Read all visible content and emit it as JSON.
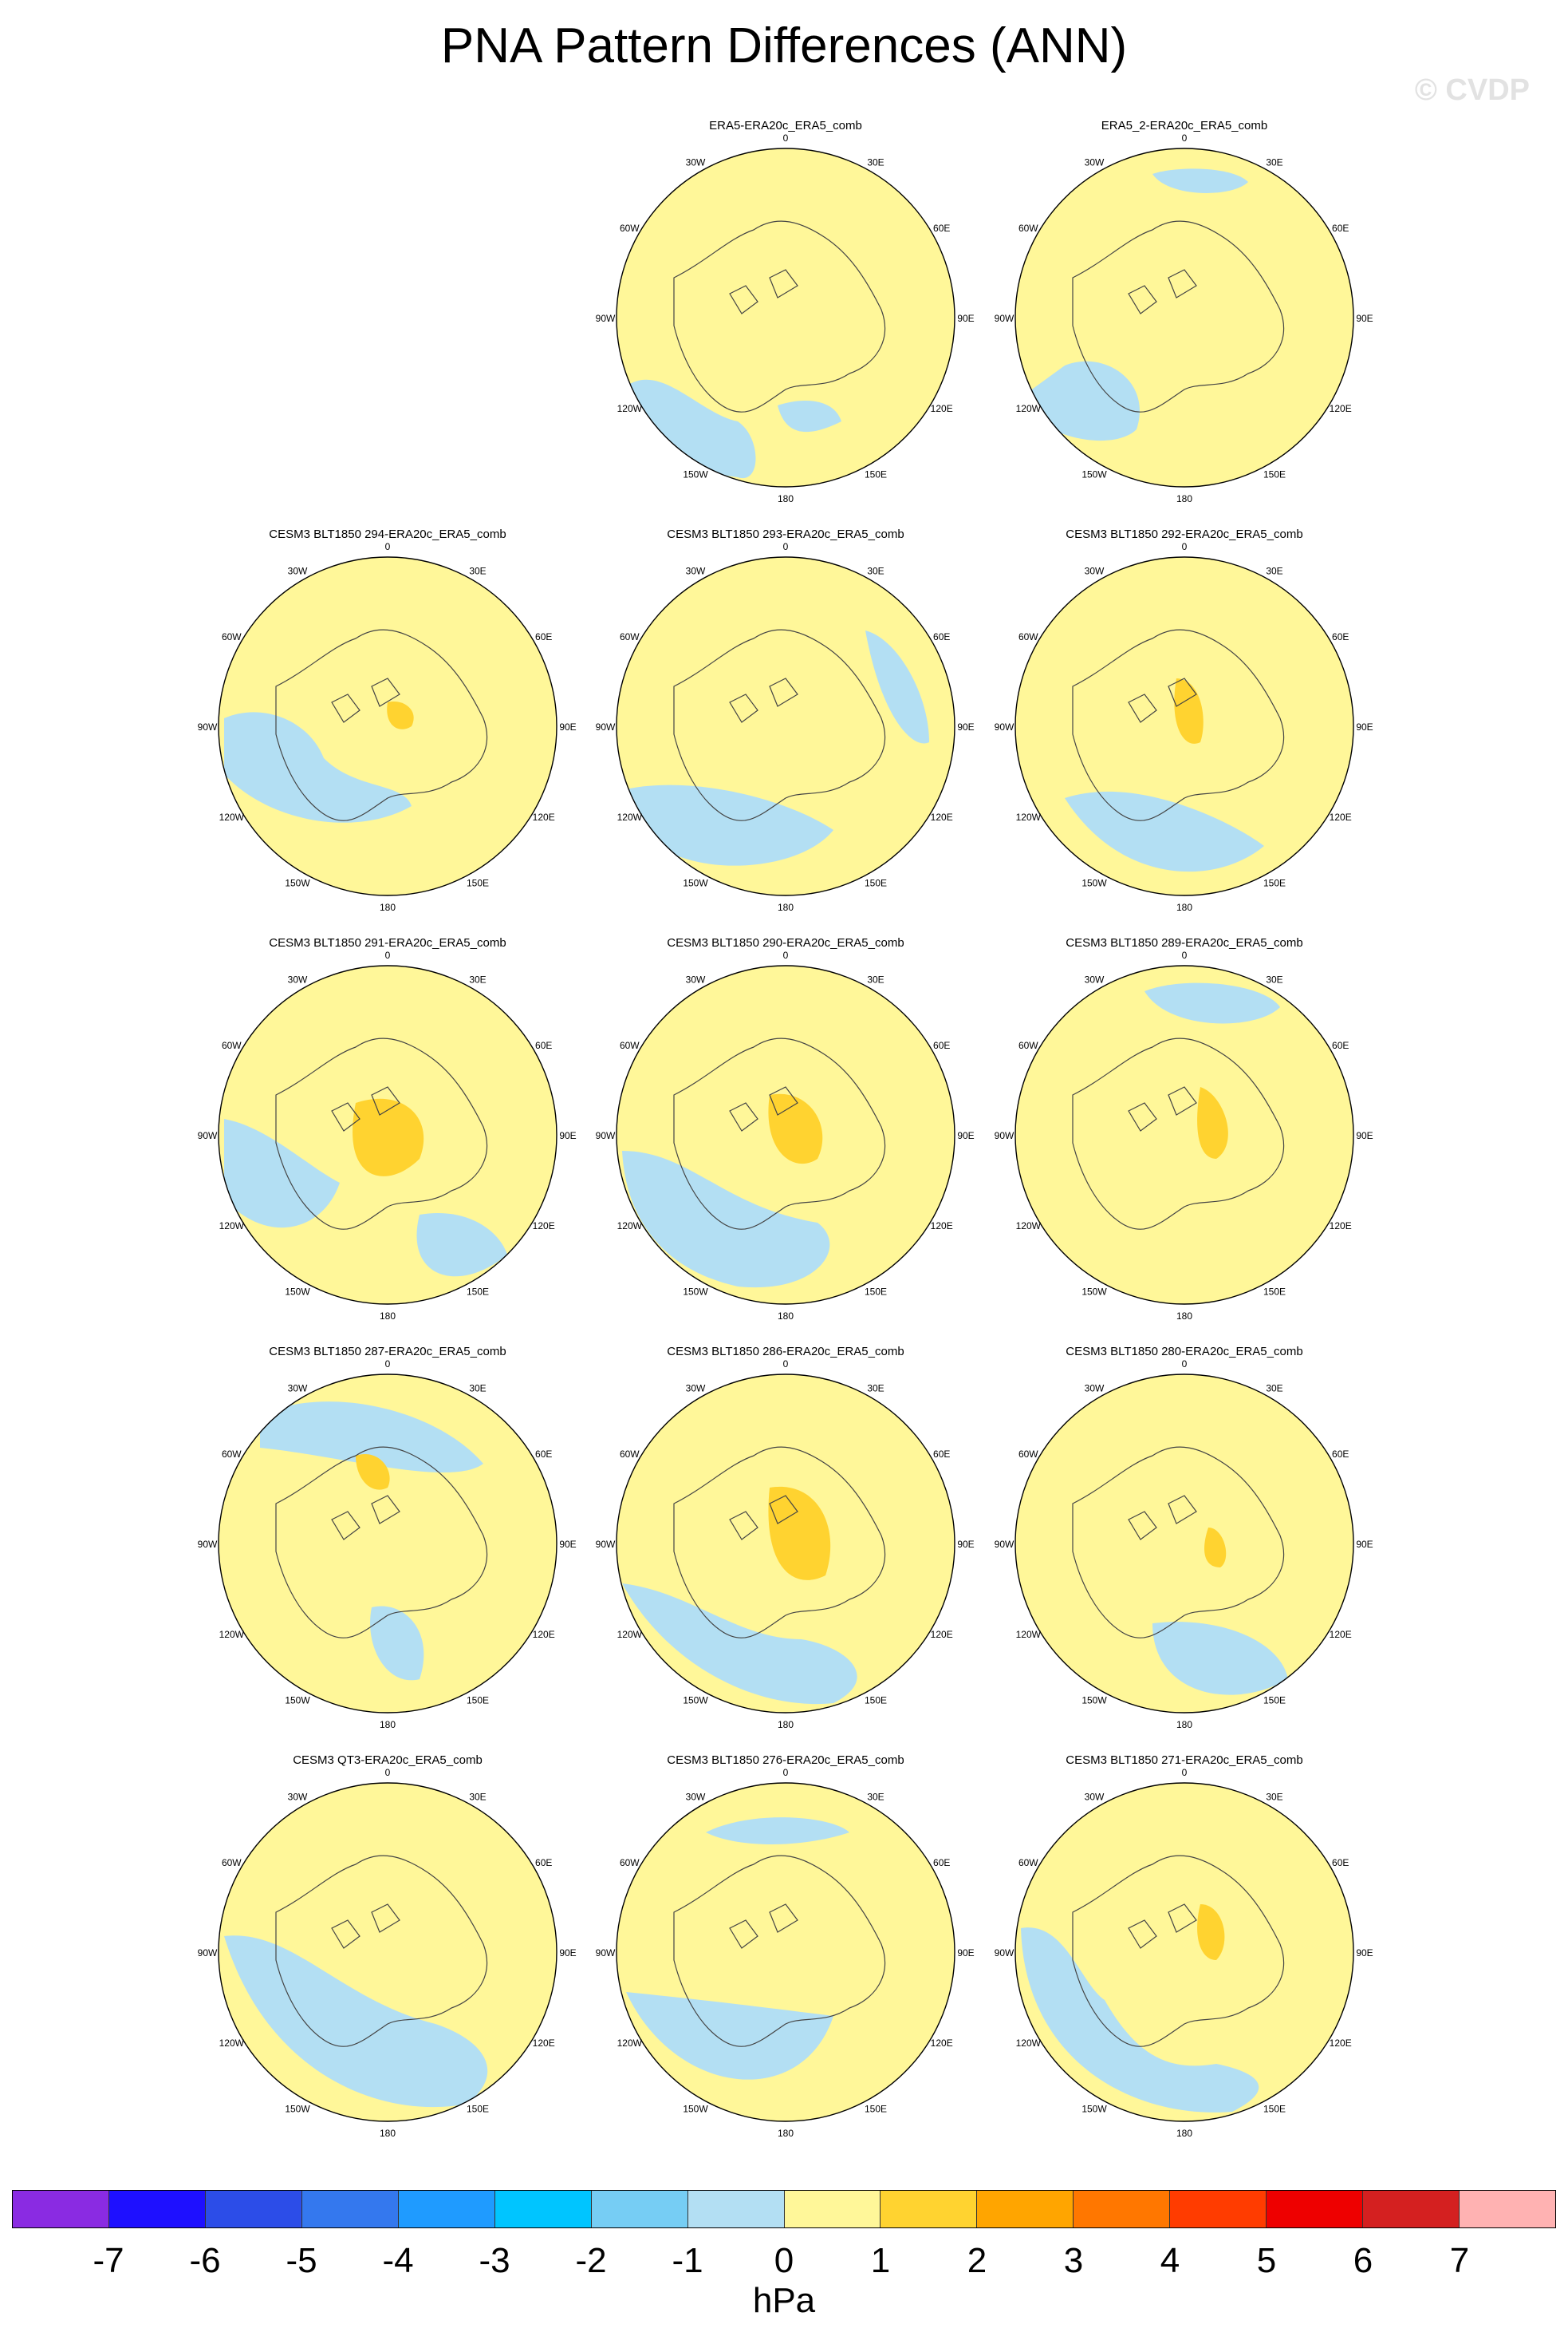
{
  "title": "PNA Pattern Differences (ANN)",
  "watermark": "© CVDP",
  "units": "hPa",
  "colors": {
    "neg1": "#b3dff3",
    "pos1": "#fff799",
    "pos2": "#ffd330",
    "coast": "#444444"
  },
  "lon_labels": [
    "180",
    "150E",
    "120E",
    "90E",
    "60E",
    "30E",
    "0",
    "30W",
    "60W",
    "90W",
    "120W",
    "150W"
  ],
  "panels": [
    {
      "title": "ERA5-ERA20c_ERA5_comb"
    },
    {
      "title": "ERA5_2-ERA20c_ERA5_comb"
    },
    {
      "title": "CESM3 BLT1850 294-ERA20c_ERA5_comb"
    },
    {
      "title": "CESM3 BLT1850 293-ERA20c_ERA5_comb"
    },
    {
      "title": "CESM3 BLT1850 292-ERA20c_ERA5_comb"
    },
    {
      "title": "CESM3 BLT1850 291-ERA20c_ERA5_comb"
    },
    {
      "title": "CESM3 BLT1850 290-ERA20c_ERA5_comb"
    },
    {
      "title": "CESM3 BLT1850 289-ERA20c_ERA5_comb"
    },
    {
      "title": "CESM3 BLT1850 287-ERA20c_ERA5_comb"
    },
    {
      "title": "CESM3 BLT1850 286-ERA20c_ERA5_comb"
    },
    {
      "title": "CESM3 BLT1850 280-ERA20c_ERA5_comb"
    },
    {
      "title": "CESM3 QT3-ERA20c_ERA5_comb"
    },
    {
      "title": "CESM3 BLT1850 276-ERA20c_ERA5_comb"
    },
    {
      "title": "CESM3 BLT1850 271-ERA20c_ERA5_comb"
    }
  ],
  "colorbar": {
    "colors": [
      "#8a2be2",
      "#1e10ff",
      "#2c4de8",
      "#3478ee",
      "#1f9bff",
      "#00c5ff",
      "#76cdf4",
      "#b3dff3",
      "#fff799",
      "#ffd330",
      "#ffa500",
      "#ff7700",
      "#ff3c00",
      "#ee0000",
      "#d42020",
      "#ffb2b2"
    ],
    "ticks": [
      "-7",
      "-6",
      "-5",
      "-4",
      "-3",
      "-2",
      "-1",
      "0",
      "1",
      "2",
      "3",
      "4",
      "5",
      "6",
      "7"
    ]
  }
}
